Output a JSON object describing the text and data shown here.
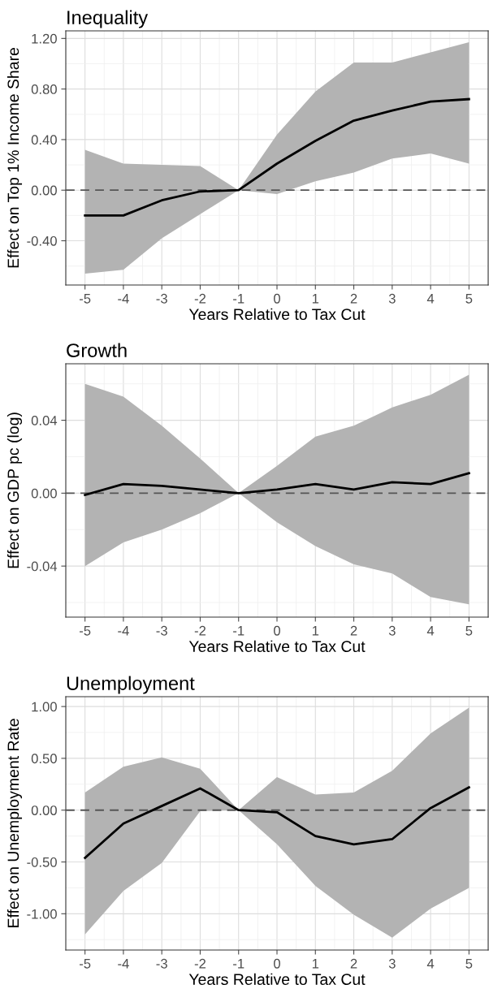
{
  "chart_data": [
    {
      "type": "line",
      "title": "Inequality",
      "xlabel": "Years Relative to Tax Cut",
      "ylabel": "Effect on Top 1% Income Share",
      "x": [
        -5,
        -4,
        -3,
        -2,
        -1,
        0,
        1,
        2,
        3,
        4,
        5
      ],
      "series": [
        {
          "color": "#000000",
          "values": [
            -0.2,
            -0.2,
            -0.08,
            -0.01,
            0,
            0.21,
            0.39,
            0.55,
            0.63,
            0.7,
            0.72
          ],
          "lower": [
            -0.66,
            -0.63,
            -0.38,
            -0.19,
            0,
            -0.03,
            0.07,
            0.14,
            0.25,
            0.29,
            0.21
          ],
          "upper": [
            0.32,
            0.21,
            0.2,
            0.19,
            0,
            0.44,
            0.78,
            1.01,
            1.01,
            1.09,
            1.17
          ]
        }
      ],
      "xlim": [
        -5.5,
        5.5
      ],
      "xticks": [
        -5,
        -4,
        -3,
        -2,
        -1,
        0,
        1,
        2,
        3,
        4,
        5
      ],
      "ylim": [
        -0.75,
        1.26
      ],
      "yticks": [
        {
          "value": -0.4,
          "label": "-0.40"
        },
        {
          "value": 0,
          "label": "0.00"
        },
        {
          "value": 0.4,
          "label": "0.40"
        },
        {
          "value": 0.8,
          "label": "0.80"
        },
        {
          "value": 1.2,
          "label": "1.20"
        }
      ],
      "ref_lines": [
        {
          "axis": "y",
          "value": 0,
          "color": "#555555",
          "line_style": "dashed"
        }
      ],
      "grid": true,
      "line_style": "solid",
      "marker": "none"
    },
    {
      "type": "line",
      "title": "Growth",
      "xlabel": "Years Relative to Tax Cut",
      "ylabel": "Effect on GDP pc (log)",
      "x": [
        -5,
        -4,
        -3,
        -2,
        -1,
        0,
        1,
        2,
        3,
        4,
        5
      ],
      "series": [
        {
          "color": "#000000",
          "values": [
            -0.001,
            0.005,
            0.004,
            0.002,
            0,
            0.002,
            0.005,
            0.002,
            0.006,
            0.005,
            0.011
          ],
          "lower": [
            -0.04,
            -0.027,
            -0.02,
            -0.011,
            0,
            -0.016,
            -0.029,
            -0.039,
            -0.044,
            -0.057,
            -0.061
          ],
          "upper": [
            0.06,
            0.053,
            0.037,
            0.019,
            0,
            0.015,
            0.031,
            0.037,
            0.047,
            0.054,
            0.065
          ]
        }
      ],
      "xlim": [
        -5.5,
        5.5
      ],
      "xticks": [
        -5,
        -4,
        -3,
        -2,
        -1,
        0,
        1,
        2,
        3,
        4,
        5
      ],
      "ylim": [
        -0.068,
        0.071
      ],
      "yticks": [
        {
          "value": -0.04,
          "label": "-0.04"
        },
        {
          "value": 0,
          "label": "0.00"
        },
        {
          "value": 0.04,
          "label": "0.04"
        }
      ],
      "ref_lines": [
        {
          "axis": "y",
          "value": 0,
          "color": "#555555",
          "line_style": "dashed"
        }
      ],
      "grid": true,
      "line_style": "solid",
      "marker": "none"
    },
    {
      "type": "line",
      "title": "Unemployment",
      "xlabel": "Years Relative to Tax Cut",
      "ylabel": "Effect on Unemployment Rate",
      "x": [
        -5,
        -4,
        -3,
        -2,
        -1,
        0,
        1,
        2,
        3,
        4,
        5
      ],
      "series": [
        {
          "color": "#000000",
          "values": [
            -0.46,
            -0.13,
            0.04,
            0.21,
            0,
            -0.02,
            -0.25,
            -0.33,
            -0.28,
            0.02,
            0.22
          ],
          "lower": [
            -1.2,
            -0.78,
            -0.51,
            -0.01,
            0,
            -0.33,
            -0.73,
            -1.01,
            -1.23,
            -0.95,
            -0.75
          ],
          "upper": [
            0.17,
            0.42,
            0.51,
            0.4,
            0,
            0.32,
            0.15,
            0.17,
            0.38,
            0.74,
            0.99
          ]
        }
      ],
      "xlim": [
        -5.5,
        5.5
      ],
      "xticks": [
        -5,
        -4,
        -3,
        -2,
        -1,
        0,
        1,
        2,
        3,
        4,
        5
      ],
      "ylim": [
        -1.35,
        1.095
      ],
      "yticks": [
        {
          "value": -1,
          "label": "-1.00"
        },
        {
          "value": -0.5,
          "label": "-0.50"
        },
        {
          "value": 0,
          "label": "0.00"
        },
        {
          "value": 0.5,
          "label": "0.50"
        },
        {
          "value": 1,
          "label": "1.00"
        }
      ],
      "ref_lines": [
        {
          "axis": "y",
          "value": 0,
          "color": "#555555",
          "line_style": "dashed"
        }
      ],
      "grid": true,
      "line_style": "solid",
      "marker": "none"
    }
  ]
}
